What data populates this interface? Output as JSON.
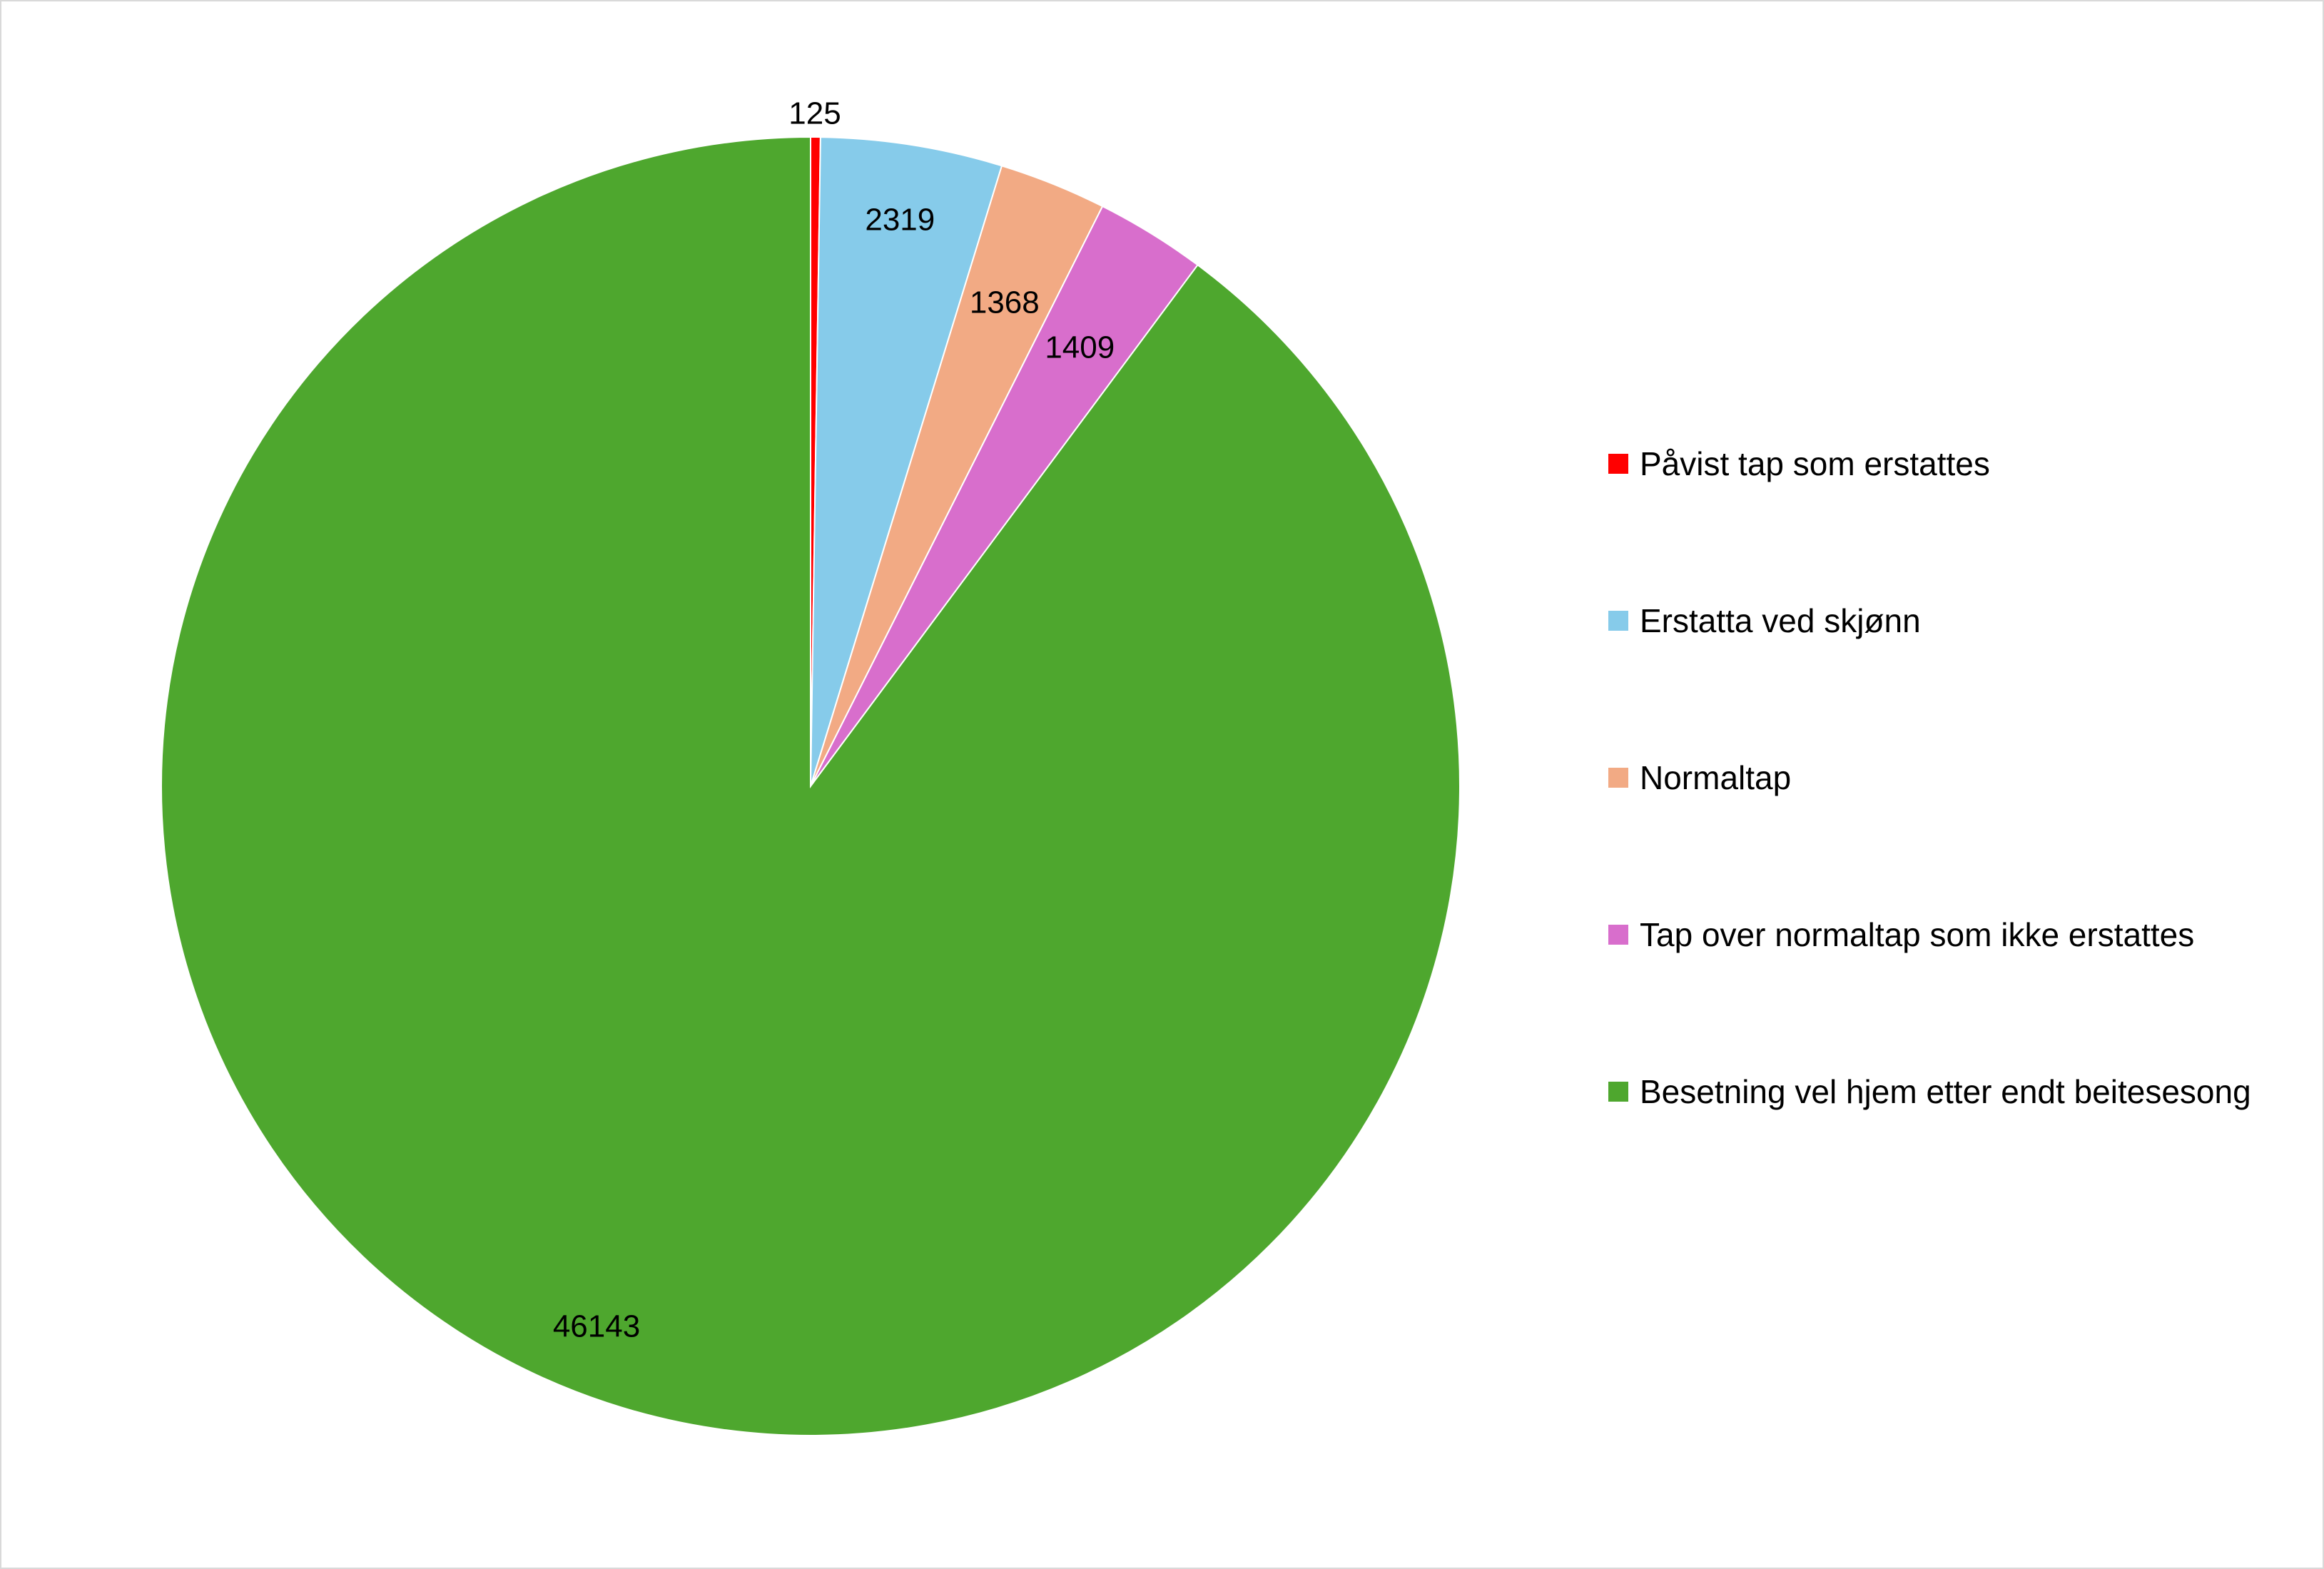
{
  "chart_data": {
    "type": "pie",
    "title": "",
    "categories": [
      "Påvist tap som erstattes",
      "Erstatta ved skjønn",
      "Normaltap",
      "Tap over normaltap som ikke erstattes",
      "Besetning vel hjem etter endt beitesesong"
    ],
    "values": [
      125,
      2319,
      1368,
      1409,
      46143
    ],
    "data_labels": [
      "125",
      "2319",
      "1368",
      "1409",
      "46143"
    ],
    "colors": [
      "#ff0000",
      "#86cbea",
      "#f2aa84",
      "#d86ecc",
      "#4ea72e"
    ],
    "start_angle": "12 o'clock",
    "direction": "clockwise",
    "legend_position": "right"
  }
}
